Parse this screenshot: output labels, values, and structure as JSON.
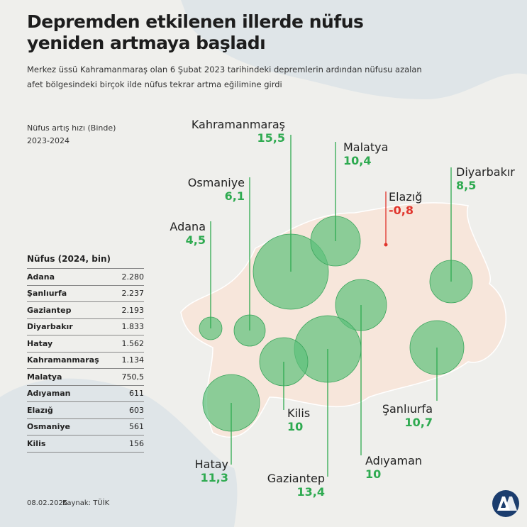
{
  "title_line1": "Depremden etkilenen illerde nüfus",
  "title_line2": "yeniden artmaya başladı",
  "subtitle_line1": "Merkez üssü Kahramanmaraş olan 6 Şubat 2023 tarihindeki depremlerin ardından nüfusu azalan",
  "subtitle_line2": "afet bölgesindeki birçok ilde nüfus tekrar artma eğilimine girdi",
  "legend_line1": "Nüfus artış hızı (Binde)",
  "legend_line2": "2023-2024",
  "chart_data": {
    "type": "bubble-map",
    "title": "Nüfus artış hızı (Binde) 2023-2024",
    "provinces": [
      {
        "name": "Kahramanmaraş",
        "growth": "15,5",
        "population": "1.134"
      },
      {
        "name": "Malatya",
        "growth": "10,4",
        "population": "750,5"
      },
      {
        "name": "Diyarbakır",
        "growth": "8,5",
        "population": "1.833"
      },
      {
        "name": "Elazığ",
        "growth": "-0,8",
        "population": "603"
      },
      {
        "name": "Osmaniye",
        "growth": "6,1",
        "population": "561"
      },
      {
        "name": "Adana",
        "growth": "4,5",
        "population": "2.280"
      },
      {
        "name": "Adıyaman",
        "growth": "10",
        "population": "611"
      },
      {
        "name": "Gaziantep",
        "growth": "13,4",
        "population": "2.193"
      },
      {
        "name": "Şanlıurfa",
        "growth": "10,7",
        "population": "2.237"
      },
      {
        "name": "Kilis",
        "growth": "10",
        "population": "156"
      },
      {
        "name": "Hatay",
        "growth": "11,3",
        "population": "1.562"
      }
    ]
  },
  "table": {
    "header": "Nüfus (2024, bin)",
    "rows": [
      {
        "name": "Adana",
        "value": "2.280"
      },
      {
        "name": "Şanlıurfa",
        "value": "2.237"
      },
      {
        "name": "Gaziantep",
        "value": "2.193"
      },
      {
        "name": "Diyarbakır",
        "value": "1.833"
      },
      {
        "name": "Hatay",
        "value": "1.562"
      },
      {
        "name": "Kahramanmaraş",
        "value": "1.134"
      },
      {
        "name": "Malatya",
        "value": "750,5"
      },
      {
        "name": "Adıyaman",
        "value": "611"
      },
      {
        "name": "Elazığ",
        "value": "603"
      },
      {
        "name": "Osmaniye",
        "value": "561"
      },
      {
        "name": "Kilis",
        "value": "156"
      }
    ]
  },
  "footer": {
    "date": "08.02.2025",
    "source": "Kaynak: TÜİK"
  },
  "colors": {
    "positive": "#2eaa50",
    "negative": "#e0342c",
    "bubble": "#5cc07a",
    "region": "#f7e6db"
  }
}
